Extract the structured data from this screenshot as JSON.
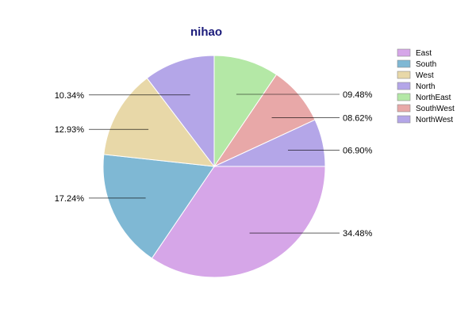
{
  "chart_data": {
    "type": "pie",
    "title": "nihao",
    "title_color": "#1a1a7a",
    "slices": [
      {
        "name": "East",
        "value": 34.48,
        "label": "34.48%",
        "color": "#d6a6e8"
      },
      {
        "name": "South",
        "value": 17.24,
        "label": "17.24%",
        "color": "#7fb8d4"
      },
      {
        "name": "West",
        "value": 12.93,
        "label": "12.93%",
        "color": "#e8d8a8"
      },
      {
        "name": "North",
        "value": 10.34,
        "label": "10.34%",
        "color": "#b4a6e8"
      },
      {
        "name": "NorthEast",
        "value": 9.48,
        "label": "09.48%",
        "color": "#b4e8a6"
      },
      {
        "name": "SouthWest",
        "value": 8.62,
        "label": "08.62%",
        "color": "#e8a8a8"
      },
      {
        "name": "NorthWest",
        "value": 6.9,
        "label": "06.90%",
        "color": "#b4a6e8"
      }
    ],
    "legend_position": "top-right"
  }
}
